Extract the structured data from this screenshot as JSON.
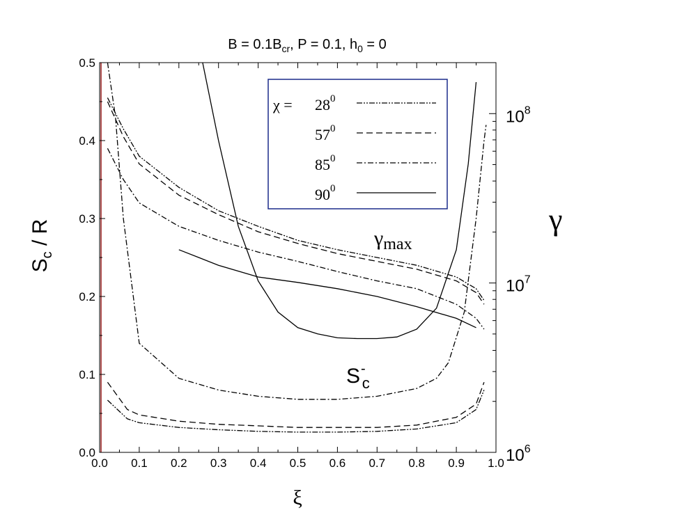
{
  "chart_data": {
    "type": "line",
    "title": {
      "B": "B = 0.1B",
      "B_sub": "cr",
      "P": ",  P = 0.1,  h",
      "h_sub": "0",
      "h_rest": " = 0"
    },
    "xlabel": "ξ",
    "ylabel": {
      "main": "S",
      "sub": "c",
      "rest": " / R"
    },
    "y2label": "γ",
    "xlim": [
      0,
      1
    ],
    "ylim": [
      0,
      0.5
    ],
    "y2lim": [
      1000000,
      200000000
    ],
    "y2scale": "log",
    "x_ticks": [
      "0.0",
      "0.1",
      "0.2",
      "0.3",
      "0.4",
      "0.5",
      "0.6",
      "0.7",
      "0.8",
      "0.9",
      "1.0"
    ],
    "y_ticks": [
      "0.0",
      "0.1",
      "0.2",
      "0.3",
      "0.4",
      "0.5"
    ],
    "y2_ticks": [
      {
        "base": "10",
        "exp": "6",
        "value": 1000000
      },
      {
        "base": "10",
        "exp": "7",
        "value": 10000000
      },
      {
        "base": "10",
        "exp": "8",
        "value": 100000000
      }
    ],
    "legend": {
      "placement": "top-center",
      "prefix": "χ = ",
      "entries": [
        {
          "base": "28",
          "sup": "0",
          "dash": "8,2,2,2,2,2"
        },
        {
          "base": "57",
          "sup": "0",
          "dash": "9,5"
        },
        {
          "base": "85",
          "sup": "0",
          "dash": "8,3,2,3"
        },
        {
          "base": "90",
          "sup": "0",
          "dash": ""
        }
      ]
    },
    "annotations": {
      "gamma_max": {
        "main": "γ",
        "sub": "max"
      },
      "s_c": {
        "main": "S",
        "sup": "-",
        "sub": "c"
      }
    },
    "vertical_marker": {
      "x": 0.0,
      "color": "#b05050"
    },
    "series": [
      {
        "group": "gamma_max",
        "chi": "28",
        "axis": "y2",
        "dash": "8,2,2,2,2,2",
        "x": [
          0.02,
          0.06,
          0.1,
          0.2,
          0.3,
          0.4,
          0.5,
          0.6,
          0.7,
          0.8,
          0.9,
          0.95,
          0.97
        ],
        "y": [
          0.455,
          0.415,
          0.38,
          0.34,
          0.31,
          0.29,
          0.272,
          0.26,
          0.25,
          0.24,
          0.225,
          0.21,
          0.195
        ]
      },
      {
        "group": "gamma_max",
        "chi": "57",
        "axis": "y2",
        "dash": "9,5",
        "x": [
          0.02,
          0.06,
          0.1,
          0.2,
          0.3,
          0.4,
          0.5,
          0.6,
          0.7,
          0.8,
          0.9,
          0.95,
          0.97
        ],
        "y": [
          0.45,
          0.405,
          0.37,
          0.33,
          0.305,
          0.283,
          0.268,
          0.255,
          0.245,
          0.235,
          0.22,
          0.205,
          0.19
        ]
      },
      {
        "group": "gamma_max",
        "chi": "85",
        "axis": "y2",
        "dash": "8,3,2,3",
        "x": [
          0.02,
          0.06,
          0.1,
          0.2,
          0.3,
          0.4,
          0.5,
          0.6,
          0.7,
          0.8,
          0.9,
          0.95,
          0.97
        ],
        "y": [
          0.39,
          0.35,
          0.32,
          0.29,
          0.272,
          0.257,
          0.245,
          0.232,
          0.22,
          0.21,
          0.19,
          0.172,
          0.158
        ]
      },
      {
        "group": "gamma_max",
        "chi": "90",
        "axis": "y2",
        "dash": "",
        "x": [
          0.2,
          0.25,
          0.3,
          0.4,
          0.5,
          0.6,
          0.7,
          0.8,
          0.9,
          0.95
        ],
        "y": [
          0.26,
          0.25,
          0.24,
          0.225,
          0.218,
          0.21,
          0.2,
          0.187,
          0.172,
          0.16
        ]
      },
      {
        "group": "s_c",
        "chi": "28",
        "axis": "y",
        "dash": "8,2,2,2,2,2",
        "x": [
          0.02,
          0.07,
          0.1,
          0.2,
          0.3,
          0.4,
          0.5,
          0.6,
          0.7,
          0.8,
          0.9,
          0.95,
          0.97
        ],
        "y": [
          0.067,
          0.043,
          0.038,
          0.032,
          0.029,
          0.027,
          0.026,
          0.026,
          0.027,
          0.03,
          0.038,
          0.055,
          0.08
        ]
      },
      {
        "group": "s_c",
        "chi": "57",
        "axis": "y",
        "dash": "9,5",
        "x": [
          0.02,
          0.07,
          0.1,
          0.2,
          0.3,
          0.4,
          0.5,
          0.6,
          0.7,
          0.8,
          0.9,
          0.95,
          0.97
        ],
        "y": [
          0.09,
          0.055,
          0.048,
          0.04,
          0.036,
          0.034,
          0.032,
          0.032,
          0.032,
          0.035,
          0.045,
          0.062,
          0.09
        ]
      },
      {
        "group": "s_c",
        "chi": "85",
        "axis": "y",
        "dash": "8,3,2,3",
        "x": [
          0.02,
          0.04,
          0.06,
          0.1,
          0.2,
          0.3,
          0.4,
          0.5,
          0.6,
          0.7,
          0.8,
          0.85,
          0.88,
          0.92,
          0.95,
          0.97,
          0.975
        ],
        "y": [
          0.5,
          0.43,
          0.3,
          0.14,
          0.095,
          0.08,
          0.072,
          0.068,
          0.068,
          0.072,
          0.082,
          0.095,
          0.115,
          0.18,
          0.3,
          0.4,
          0.42
        ]
      },
      {
        "group": "s_c",
        "chi": "90",
        "axis": "y",
        "dash": "",
        "x": [
          0.26,
          0.3,
          0.35,
          0.4,
          0.45,
          0.5,
          0.55,
          0.6,
          0.65,
          0.7,
          0.75,
          0.8,
          0.85,
          0.9,
          0.93,
          0.95
        ],
        "y": [
          0.5,
          0.4,
          0.29,
          0.22,
          0.18,
          0.16,
          0.152,
          0.147,
          0.146,
          0.146,
          0.148,
          0.158,
          0.185,
          0.26,
          0.37,
          0.475
        ]
      }
    ]
  }
}
